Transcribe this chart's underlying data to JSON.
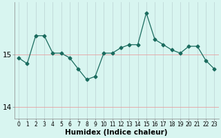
{
  "x": [
    0,
    1,
    2,
    3,
    4,
    5,
    6,
    7,
    8,
    9,
    10,
    11,
    12,
    13,
    14,
    15,
    16,
    17,
    18,
    19,
    20,
    21,
    22,
    23
  ],
  "y": [
    14.93,
    14.82,
    15.35,
    15.35,
    15.02,
    15.02,
    14.93,
    14.72,
    14.52,
    14.58,
    15.02,
    15.02,
    15.12,
    15.18,
    15.18,
    15.78,
    15.28,
    15.18,
    15.08,
    15.02,
    15.15,
    15.15,
    14.88,
    14.72
  ],
  "line_color": "#1a6b5e",
  "marker": "D",
  "marker_size": 2.5,
  "bg_color": "#d8f5f0",
  "grid_color_v": "#c0d8d8",
  "grid_color_h": "#e8a0a0",
  "xlabel": "Humidex (Indice chaleur)",
  "yticks": [
    14,
    15
  ],
  "ylim": [
    13.78,
    15.98
  ],
  "xlim": [
    -0.5,
    23.5
  ],
  "xtick_labels": [
    "0",
    "1",
    "2",
    "3",
    "4",
    "5",
    "6",
    "7",
    "8",
    "9",
    "10",
    "11",
    "12",
    "13",
    "14",
    "15",
    "16",
    "17",
    "18",
    "19",
    "20",
    "21",
    "22",
    "23"
  ]
}
